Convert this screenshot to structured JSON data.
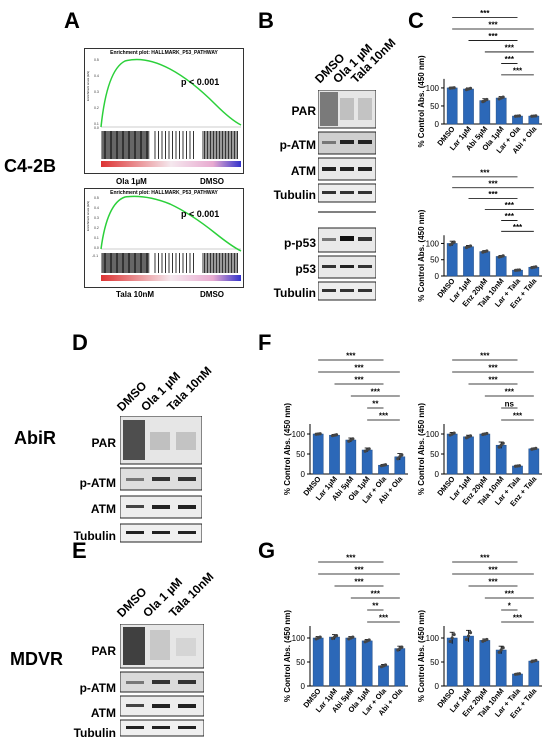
{
  "panel_letters": {
    "A": "A",
    "B": "B",
    "C": "C",
    "D": "D",
    "E": "E",
    "F": "F",
    "G": "G"
  },
  "row_labels": {
    "c42b": "C4-2B",
    "abir": "AbiR",
    "mdvr": "MDVR"
  },
  "gsea": [
    {
      "title": "Enrichment plot: HALLMARK_P53_PATHWAY",
      "p": "p < 0.001",
      "left": "Ola 1µM",
      "right": "DMSO",
      "ylabel": "Enrichment score (ES)",
      "yticks": [
        "0.5",
        "0.4",
        "0.3",
        "0.2",
        "0.1",
        "0.0"
      ]
    },
    {
      "title": "Enrichment plot: HALLMARK_P53_PATHWAY",
      "p": "p < 0.001",
      "left": "Tala 10nM",
      "right": "DMSO",
      "ylabel": "Enrichment score (ES)",
      "yticks": [
        "0.5",
        "0.4",
        "0.3",
        "0.2",
        "0.1",
        "0.0",
        "-0.1"
      ]
    }
  ],
  "blots": {
    "B_lanes": [
      "DMSO",
      "Ola 1 µM",
      "Tala 10nM"
    ],
    "B_top": [
      "PAR",
      "p-ATM",
      "ATM",
      "Tubulin"
    ],
    "B_bottom": [
      "p-p53",
      "p53",
      "Tubulin"
    ],
    "D_lanes": [
      "DMSO",
      "Ola 1 µM",
      "Tala 10nM"
    ],
    "D_rows": [
      "PAR",
      "p-ATM",
      "ATM",
      "Tubulin"
    ],
    "E_lanes": [
      "DMSO",
      "Ola 1 µM",
      "Tala 10nM"
    ],
    "E_rows": [
      "PAR",
      "p-ATM",
      "ATM",
      "Tubulin"
    ]
  },
  "chart_data": [
    {
      "id": "C1",
      "type": "bar",
      "categories": [
        "DMSO",
        "Lar 1µM",
        "Abi 5µM",
        "Ola 1µM",
        "Lar + Ola",
        "Abi + Ola"
      ],
      "values": [
        100,
        97,
        65,
        72,
        22,
        22
      ],
      "errors": [
        1,
        3,
        5,
        4,
        1,
        1
      ],
      "ylabel": "% Control Abs. (450 nm)",
      "ylim": [
        0,
        125
      ],
      "yticks": [
        0,
        50,
        100
      ],
      "sig": [
        "***",
        "***",
        "***",
        "***",
        "***",
        "***"
      ]
    },
    {
      "id": "C2",
      "type": "bar",
      "categories": [
        "DMSO",
        "Lar 1µM",
        "Enz 20µM",
        "Tala 10nM",
        "Lar + Tala",
        "Enz + Tala"
      ],
      "values": [
        100,
        90,
        75,
        60,
        18,
        27
      ],
      "errors": [
        7,
        4,
        3,
        3,
        1,
        2
      ],
      "ylabel": "% Control Abs. (450 nm)",
      "ylim": [
        0,
        125
      ],
      "yticks": [
        0,
        50,
        100
      ],
      "sig": [
        "***",
        "***",
        "***",
        "***",
        "***",
        "***"
      ]
    },
    {
      "id": "F1",
      "type": "bar",
      "categories": [
        "DMSO",
        "Lar 1µM",
        "Abi 5µM",
        "Ola 1µM",
        "Lar + Ola",
        "Abi + Ola"
      ],
      "values": [
        100,
        97,
        85,
        60,
        22,
        43
      ],
      "errors": [
        1,
        2,
        5,
        5,
        2,
        8
      ],
      "ylabel": "% Control Abs. (450 nm)",
      "ylim": [
        0,
        125
      ],
      "yticks": [
        0,
        50,
        100
      ],
      "sig": [
        "***",
        "***",
        "***",
        "***",
        "**",
        "***"
      ]
    },
    {
      "id": "F2",
      "type": "bar",
      "categories": [
        "DMSO",
        "Lar 1µM",
        "Enz 20µM",
        "Tala 10nM",
        "Lar + Tala",
        "Enz + Tala"
      ],
      "values": [
        100,
        93,
        100,
        72,
        20,
        63
      ],
      "errors": [
        4,
        4,
        2,
        8,
        1,
        2
      ],
      "ylabel": "% Control Abs. (450 nm)",
      "ylim": [
        0,
        125
      ],
      "yticks": [
        0,
        50,
        100
      ],
      "sig": [
        "***",
        "***",
        "***",
        "***",
        "ns",
        "***"
      ]
    },
    {
      "id": "G1",
      "type": "bar",
      "categories": [
        "DMSO",
        "Lar 1µM",
        "Abi 5µM",
        "Ola 1µM",
        "Lar + Ola",
        "Abi + Ola"
      ],
      "values": [
        100,
        102,
        100,
        94,
        42,
        78
      ],
      "errors": [
        3,
        5,
        3,
        3,
        3,
        5
      ],
      "ylabel": "% Control Abs. (450 nm)",
      "ylim": [
        0,
        125
      ],
      "yticks": [
        0,
        50,
        100
      ],
      "sig": [
        "***",
        "***",
        "***",
        "***",
        "**",
        "***"
      ]
    },
    {
      "id": "G2",
      "type": "bar",
      "categories": [
        "DMSO",
        "Lar 1µM",
        "Enz 20µM",
        "Tala 10nM",
        "Lar + Tala",
        "Enz + Tala"
      ],
      "values": [
        100,
        104,
        95,
        75,
        25,
        52
      ],
      "errors": [
        12,
        12,
        3,
        8,
        1,
        2
      ],
      "ylabel": "% Control Abs. (450 nm)",
      "ylim": [
        0,
        125
      ],
      "yticks": [
        0,
        50,
        100
      ],
      "sig": [
        "***",
        "***",
        "***",
        "***",
        "*",
        "***"
      ]
    }
  ]
}
